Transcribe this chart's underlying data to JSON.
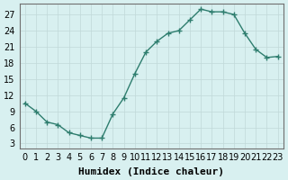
{
  "x": [
    0,
    1,
    2,
    3,
    4,
    5,
    6,
    7,
    8,
    9,
    10,
    11,
    12,
    13,
    14,
    15,
    16,
    17,
    18,
    19,
    20,
    21,
    22,
    23
  ],
  "y": [
    10.5,
    9.0,
    7.0,
    6.5,
    5.0,
    4.5,
    4.0,
    4.0,
    8.5,
    11.5,
    16.0,
    20.0,
    22.0,
    23.5,
    24.0,
    26.0,
    28.0,
    27.5,
    27.5,
    27.0,
    23.5,
    20.5,
    19.0,
    19.2
  ],
  "xlabel": "Humidex (Indice chaleur)",
  "xlim": [
    -0.5,
    23.5
  ],
  "ylim": [
    2,
    29
  ],
  "yticks": [
    3,
    6,
    9,
    12,
    15,
    18,
    21,
    24,
    27
  ],
  "xticks": [
    0,
    1,
    2,
    3,
    4,
    5,
    6,
    7,
    8,
    9,
    10,
    11,
    12,
    13,
    14,
    15,
    16,
    17,
    18,
    19,
    20,
    21,
    22,
    23
  ],
  "line_color": "#2e7d6e",
  "bg_color": "#d8f0f0",
  "grid_color": "#c0d8d8",
  "axis_color": "#707070",
  "label_fontsize": 8,
  "tick_fontsize": 7
}
